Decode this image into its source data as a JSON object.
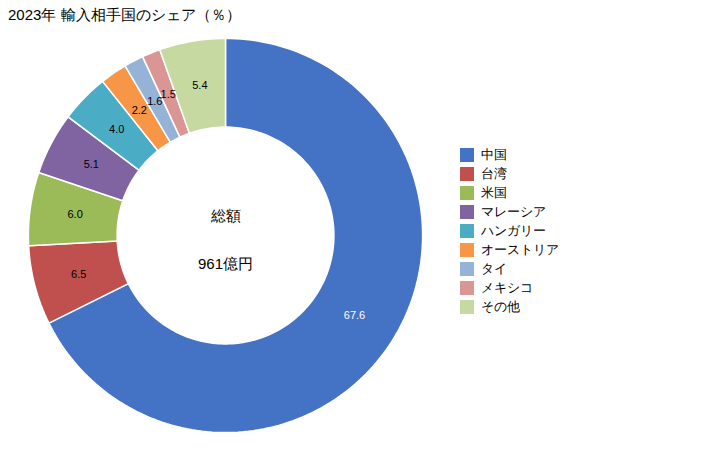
{
  "chart_data": {
    "type": "pie",
    "title": "2023年 輸入相手国のシェア（％）",
    "annotations": [
      "総額",
      "961億円"
    ],
    "categories": [
      "中国",
      "台湾",
      "米国",
      "マレーシア",
      "ハンガリー",
      "オーストリア",
      "タイ",
      "メキシコ",
      "その他"
    ],
    "values": [
      67.6,
      6.5,
      6.0,
      5.1,
      4.0,
      2.2,
      1.6,
      1.5,
      5.4
    ],
    "value_labels": [
      "67.6",
      "6.5",
      "6.0",
      "5.1",
      "4.0",
      "2.2",
      "1.6",
      "1.5",
      "5.4"
    ],
    "colors": [
      "#4472C4",
      "#C0504D",
      "#9BBB59",
      "#8064A2",
      "#4BACC6",
      "#F79646",
      "#95B3D7",
      "#D99694",
      "#C6D9A0"
    ],
    "data_labels": true,
    "legend": "right"
  }
}
